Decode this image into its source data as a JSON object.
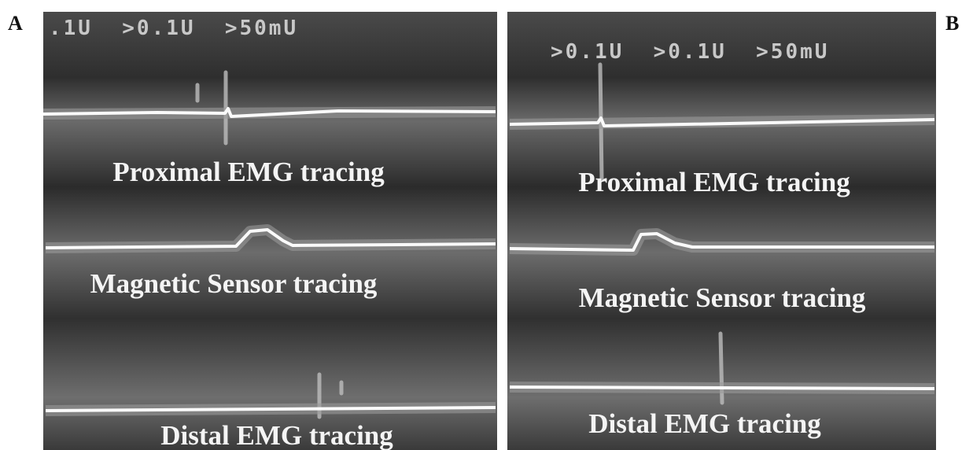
{
  "panels": [
    {
      "label": "A",
      "scale_readout": ".1U  >0.1U  >50mU",
      "traces": [
        "Proximal EMG tracing",
        "Magnetic Sensor tracing",
        "Distal EMG tracing"
      ]
    },
    {
      "label": "B",
      "scale_readout": ">0.1U  >0.1U  >50mU",
      "traces": [
        "Proximal EMG tracing",
        "Magnetic Sensor tracing",
        "Distal EMG tracing"
      ]
    }
  ]
}
